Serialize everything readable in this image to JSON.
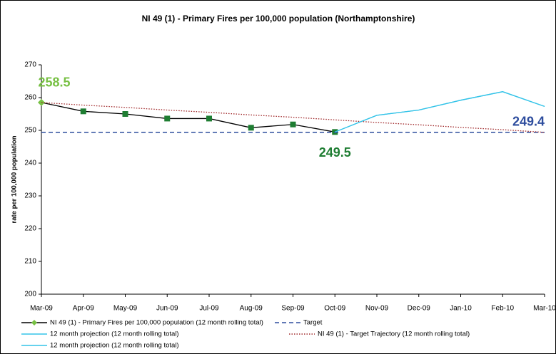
{
  "chart_data": {
    "type": "line",
    "title": "NI 49 (1) - Primary Fires per 100,000 population (Northamptonshire)",
    "y_label": "rate per 100,000 population",
    "categories": [
      "Mar-09",
      "Apr-09",
      "May-09",
      "Jun-09",
      "Jul-09",
      "Aug-09",
      "Sep-09",
      "Oct-09",
      "Nov-09",
      "Dec-09",
      "Jan-10",
      "Feb-10",
      "Mar-10"
    ],
    "ylim": [
      200,
      270
    ],
    "yticks": [
      200,
      210,
      220,
      230,
      240,
      250,
      260,
      270
    ],
    "grid": false,
    "legend": "bottom",
    "series": [
      {
        "name": "NI 49 (1) - Primary Fires per 100,000 population (12 month rolling total)",
        "color": "#000000",
        "marker_color": "#1e7d32",
        "dash": "solid",
        "values": [
          258.5,
          255.8,
          255.0,
          253.6,
          253.6,
          250.8,
          251.8,
          249.5,
          null,
          null,
          null,
          null,
          null
        ],
        "label_indices": [
          0,
          7
        ],
        "label_colors": [
          "#77c043",
          "#1e7d32"
        ]
      },
      {
        "name": "Target",
        "color": "#2e4d9e",
        "dash": "dashed",
        "values": [
          249.4,
          249.4,
          249.4,
          249.4,
          249.4,
          249.4,
          249.4,
          249.4,
          249.4,
          249.4,
          249.4,
          249.4,
          249.4
        ],
        "label_indices": [
          12
        ],
        "label_colors": [
          "#2e4d9e"
        ]
      },
      {
        "name": "12 month projection (12 month rolling total)",
        "color": "#33c3e8",
        "dash": "solid",
        "values": [
          null,
          null,
          null,
          null,
          null,
          null,
          null,
          249.5,
          254.6,
          256.2,
          259.2,
          261.8,
          257.3
        ]
      },
      {
        "name": "NI 49 (1) - Target Trajectory (12 month rolling total)",
        "color": "#a0282a",
        "dash": "dotted",
        "values": [
          258.5,
          257.7,
          257.0,
          256.2,
          255.5,
          254.7,
          254.0,
          253.2,
          252.4,
          251.7,
          250.9,
          250.2,
          249.4
        ]
      },
      {
        "name": "12 month projection (12 month rolling total)",
        "color": "#33c3e8",
        "dash": "solid",
        "values": [
          null,
          null,
          null,
          null,
          null,
          null,
          null,
          249.5,
          254.6,
          256.2,
          259.2,
          261.8,
          257.3
        ]
      }
    ]
  }
}
